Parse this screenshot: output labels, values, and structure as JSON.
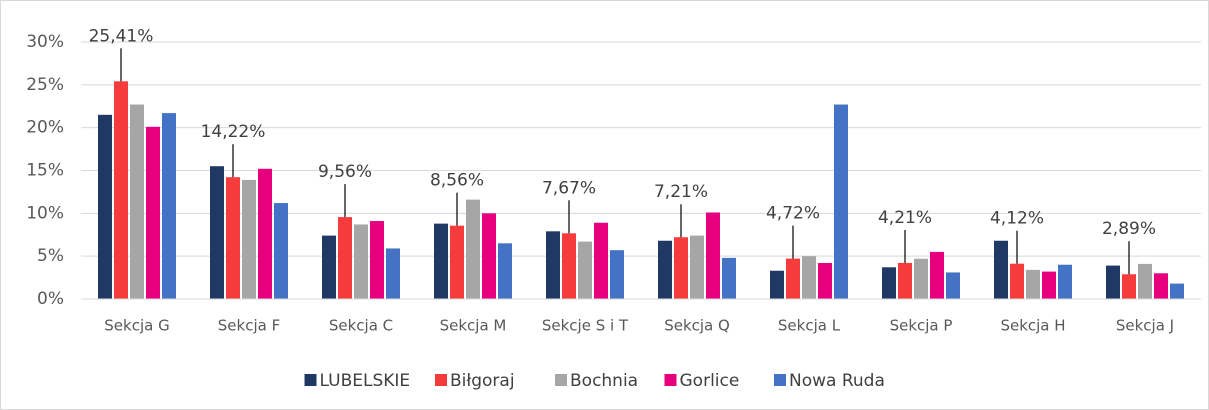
{
  "chart_data": {
    "type": "bar",
    "categories": [
      "Sekcja G",
      "Sekcja F",
      "Sekcja C",
      "Sekcja M",
      "Sekcje S i T",
      "Sekcja Q",
      "Sekcja L",
      "Sekcja P",
      "Sekcja H",
      "Sekcja J"
    ],
    "series": [
      {
        "name": "LUBELSKIE",
        "color": "#1f3864",
        "values": [
          21.5,
          15.5,
          7.4,
          8.8,
          7.9,
          6.8,
          3.3,
          3.7,
          6.8,
          3.9
        ]
      },
      {
        "name": "Biłgoraj",
        "color": "#f43c3c",
        "values": [
          25.41,
          14.22,
          9.56,
          8.56,
          7.67,
          7.21,
          4.72,
          4.21,
          4.12,
          2.89
        ],
        "value_labels": [
          "25,41%",
          "14,22%",
          "9,56%",
          "8,56%",
          "7,67%",
          "7,21%",
          "4,72%",
          "4,21%",
          "4,12%",
          "2,89%"
        ]
      },
      {
        "name": "Bochnia",
        "color": "#a6a6a6",
        "values": [
          22.7,
          13.9,
          8.7,
          11.6,
          6.7,
          7.4,
          5.0,
          4.7,
          3.4,
          4.1
        ]
      },
      {
        "name": "Gorlice",
        "color": "#e6007e",
        "values": [
          20.1,
          15.2,
          9.1,
          10.0,
          8.9,
          10.1,
          4.2,
          5.5,
          3.2,
          3.0
        ]
      },
      {
        "name": "Nowa Ruda",
        "color": "#4472c4",
        "values": [
          21.7,
          11.2,
          5.9,
          6.5,
          5.7,
          4.8,
          22.7,
          3.1,
          4.0,
          1.8
        ]
      }
    ],
    "ylim": [
      0,
      30
    ],
    "yticks": [
      {
        "value": 0,
        "label": "0%"
      },
      {
        "value": 5,
        "label": "5%"
      },
      {
        "value": 10,
        "label": "10%"
      },
      {
        "value": 15,
        "label": "15%"
      },
      {
        "value": 20,
        "label": "20%"
      },
      {
        "value": 25,
        "label": "25%"
      },
      {
        "value": 30,
        "label": "30%"
      }
    ],
    "grid": true,
    "legend": "bottom"
  }
}
